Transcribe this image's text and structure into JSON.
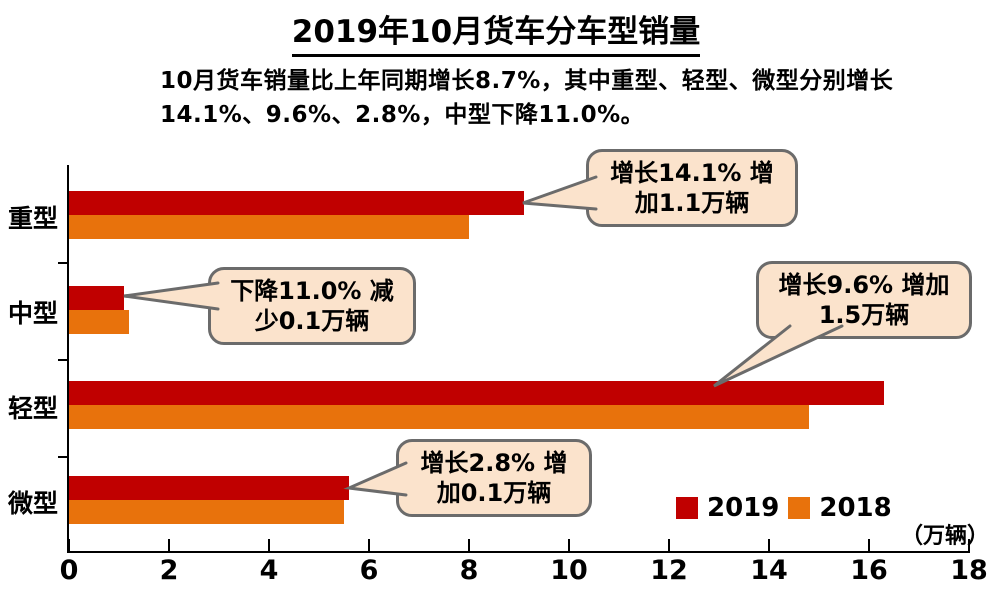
{
  "title": "2019年10月货车分车型销量",
  "subtitle": {
    "line1": "10月货车销量比上年同期增长8.7%，其中重型、轻型、微型分别增长",
    "line2": "14.1%、9.6%、2.8%，中型下降11.0%。"
  },
  "unit_label": "（万辆）",
  "legend": {
    "items": [
      {
        "label": "2019",
        "color": "#C00000"
      },
      {
        "label": "2018",
        "color": "#E8720C"
      }
    ]
  },
  "callouts": [
    {
      "line1": "增长14.1% 增",
      "line2": "加1.1万辆"
    },
    {
      "line1": "下降11.0% 减",
      "line2": "少0.1万辆"
    },
    {
      "line1": "增长9.6% 增加",
      "line2": "1.5万辆"
    },
    {
      "line1": "增长2.8% 增",
      "line2": "加0.1万辆"
    }
  ],
  "chart_data": {
    "type": "bar",
    "orientation": "horizontal",
    "title": "2019年10月货车分车型销量",
    "categories": [
      "重型",
      "中型",
      "轻型",
      "微型"
    ],
    "series": [
      {
        "name": "2019",
        "color": "#C00000",
        "values": [
          9.1,
          1.1,
          16.3,
          5.6
        ]
      },
      {
        "name": "2018",
        "color": "#E8720C",
        "values": [
          8.0,
          1.2,
          14.8,
          5.5
        ]
      }
    ],
    "xlabel": "（万辆）",
    "xlim": [
      0,
      18
    ],
    "xticks": [
      0,
      2,
      4,
      6,
      8,
      10,
      12,
      14,
      16,
      18
    ],
    "grid": false,
    "legend_position": "bottom-right"
  }
}
